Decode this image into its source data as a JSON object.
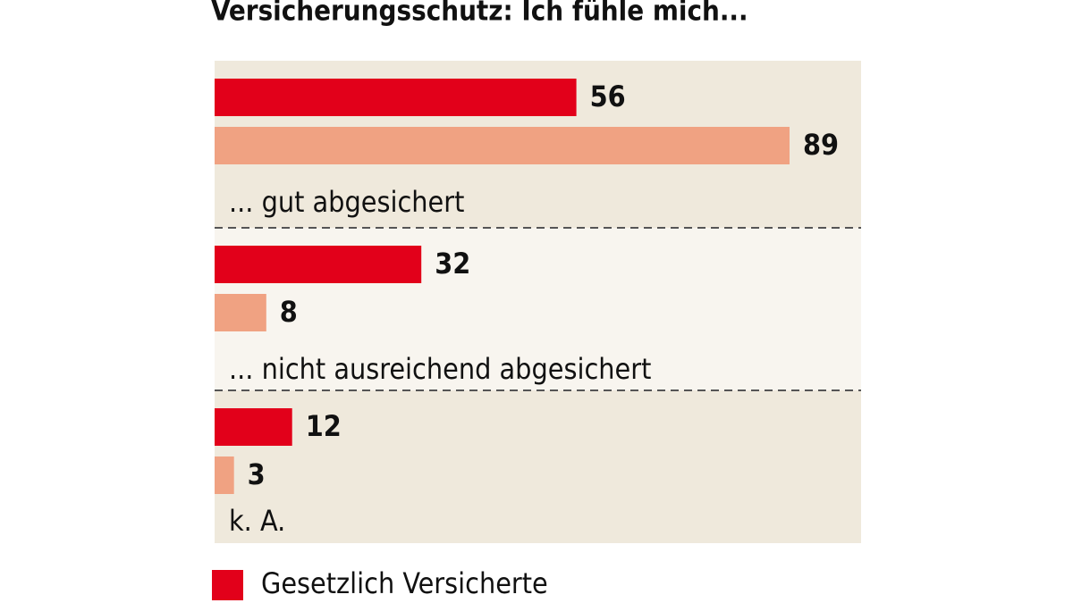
{
  "chart_data": {
    "type": "bar",
    "orientation": "horizontal",
    "title": "Versicherungsschutz: Ich fühle mich...",
    "categories": [
      "... gut abgesichert",
      "... nicht ausreichend abgesichert",
      "k. A."
    ],
    "series": [
      {
        "name": "Gesetzlich Versicherte",
        "color": "#e2001a",
        "values": [
          56,
          32,
          12
        ]
      },
      {
        "color": "#f0a282",
        "values": [
          89,
          8,
          3
        ]
      }
    ]
  }
}
